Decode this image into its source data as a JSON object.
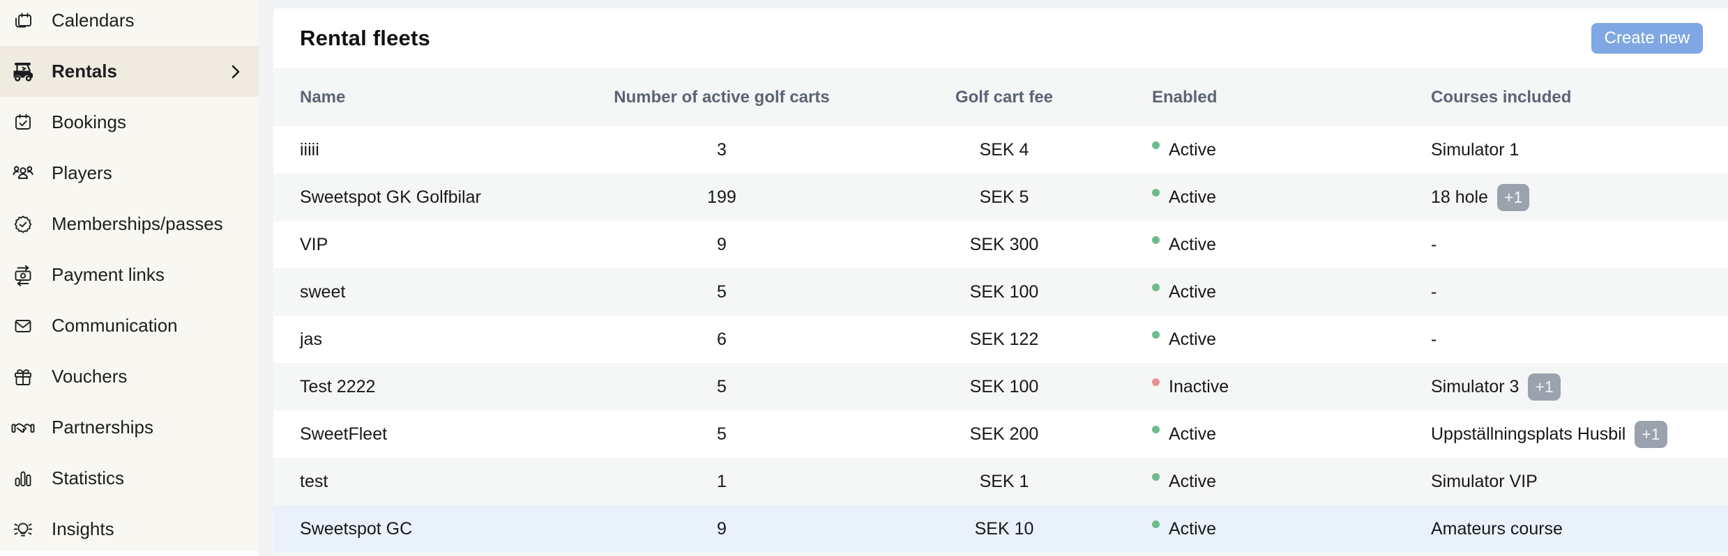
{
  "sidebar": {
    "items": [
      {
        "id": "calendars",
        "label": "Calendars",
        "icon": "calendars-icon",
        "active": false
      },
      {
        "id": "rentals",
        "label": "Rentals",
        "icon": "golf-cart-icon",
        "active": true,
        "chevron": true
      },
      {
        "id": "bookings",
        "label": "Bookings",
        "icon": "calendar-check-icon",
        "active": false
      },
      {
        "id": "players",
        "label": "Players",
        "icon": "people-icon",
        "active": false
      },
      {
        "id": "memberships",
        "label": "Memberships/passes",
        "icon": "badge-check-icon",
        "active": false
      },
      {
        "id": "payment-links",
        "label": "Payment links",
        "icon": "money-transfer-icon",
        "active": false
      },
      {
        "id": "communication",
        "label": "Communication",
        "icon": "envelope-icon",
        "active": false
      },
      {
        "id": "vouchers",
        "label": "Vouchers",
        "icon": "gift-icon",
        "active": false
      },
      {
        "id": "partnerships",
        "label": "Partnerships",
        "icon": "handshake-icon",
        "active": false
      },
      {
        "id": "statistics",
        "label": "Statistics",
        "icon": "bar-chart-icon",
        "active": false
      },
      {
        "id": "insights",
        "label": "Insights",
        "icon": "lightbulb-icon",
        "active": false
      }
    ]
  },
  "header": {
    "title": "Rental fleets",
    "create_button_label": "Create new"
  },
  "table": {
    "columns": [
      "Name",
      "Number of active golf carts",
      "Golf cart fee",
      "Enabled",
      "Courses included"
    ],
    "rows": [
      {
        "name": "iiiii",
        "carts": "3",
        "fee": "SEK 4",
        "status": "Active",
        "courses": "Simulator 1",
        "badge": null,
        "highlighted": false
      },
      {
        "name": "Sweetspot GK Golfbilar",
        "carts": "199",
        "fee": "SEK 5",
        "status": "Active",
        "courses": "18 hole",
        "badge": "+1",
        "highlighted": false
      },
      {
        "name": "VIP",
        "carts": "9",
        "fee": "SEK 300",
        "status": "Active",
        "courses": "-",
        "badge": null,
        "highlighted": false
      },
      {
        "name": "sweet",
        "carts": "5",
        "fee": "SEK 100",
        "status": "Active",
        "courses": "-",
        "badge": null,
        "highlighted": false
      },
      {
        "name": "jas",
        "carts": "6",
        "fee": "SEK 122",
        "status": "Active",
        "courses": "-",
        "badge": null,
        "highlighted": false
      },
      {
        "name": "Test 2222",
        "carts": "5",
        "fee": "SEK 100",
        "status": "Inactive",
        "courses": "Simulator 3",
        "badge": "+1",
        "highlighted": false
      },
      {
        "name": "SweetFleet",
        "carts": "5",
        "fee": "SEK 200",
        "status": "Active",
        "courses": "Uppställningsplats Husbil",
        "badge": "+1",
        "highlighted": false
      },
      {
        "name": "test",
        "carts": "1",
        "fee": "SEK 1",
        "status": "Active",
        "courses": "Simulator VIP",
        "badge": null,
        "highlighted": false
      },
      {
        "name": "Sweetspot GC",
        "carts": "9",
        "fee": "SEK 10",
        "status": "Active",
        "courses": "Amateurs course",
        "badge": null,
        "highlighted": true
      }
    ]
  },
  "colors": {
    "active_dot": "#6cbb8d",
    "inactive_dot": "#e89090",
    "zebra_row": "#f5f6f6",
    "white_row": "#ffffff",
    "highlight_row": "#e9f1fb",
    "button_blue": "#7ea7e3",
    "sidebar_bg": "#f9f7f2",
    "sidebar_active_bg": "#efebe1",
    "badge_bg": "#9aa2ae"
  }
}
